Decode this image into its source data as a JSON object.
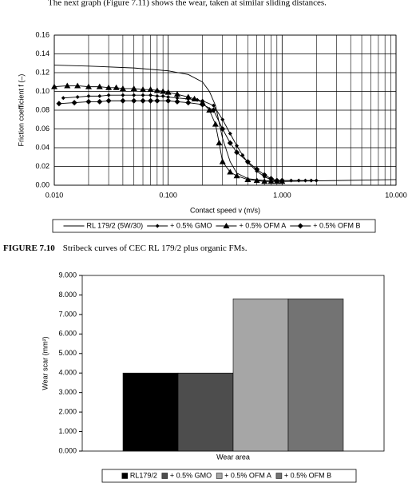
{
  "intro": "The next graph (Figure 7.11) shows the wear, taken at similar sliding distances.",
  "caption": {
    "label": "FIGURE 7.10",
    "text": "Stribeck curves of CEC RL 179/2 plus organic FMs."
  },
  "chart_data": [
    {
      "type": "line",
      "x_label": "Contact speed v (m/s)",
      "y_label": "Friction coefficient f (–)",
      "xscale": "log",
      "grid": true,
      "legend": "bottom",
      "xlim": [
        0.01,
        10
      ],
      "ylim": [
        0,
        0.16
      ],
      "xticks": [
        {
          "value": 0.01,
          "label": "0.010"
        },
        {
          "value": 0.1,
          "label": "0.100"
        },
        {
          "value": 1,
          "label": "1.000"
        },
        {
          "value": 10,
          "label": "10.000"
        }
      ],
      "xminor": [
        0.02,
        0.03,
        0.04,
        0.05,
        0.06,
        0.07,
        0.08,
        0.09,
        0.2,
        0.3,
        0.4,
        0.5,
        0.6,
        0.7,
        0.8,
        0.9,
        2,
        3,
        4,
        5,
        6,
        7,
        8,
        9
      ],
      "yticks": [
        {
          "value": 0,
          "label": "0.00"
        },
        {
          "value": 0.02,
          "label": "0.02"
        },
        {
          "value": 0.04,
          "label": "0.04"
        },
        {
          "value": 0.06,
          "label": "0.06"
        },
        {
          "value": 0.08,
          "label": "0.08"
        },
        {
          "value": 0.1,
          "label": "0.10"
        },
        {
          "value": 0.12,
          "label": "0.12"
        },
        {
          "value": 0.14,
          "label": "0.14"
        },
        {
          "value": 0.16,
          "label": "0.16"
        }
      ],
      "series": [
        {
          "name": "RL 179/2 (5W/30)",
          "color": "#000000",
          "marker": "none",
          "x": [
            0.01,
            0.02,
            0.05,
            0.1,
            0.15,
            0.2,
            0.23,
            0.26,
            0.3,
            0.35,
            0.4,
            0.5,
            0.7,
            1,
            3,
            10
          ],
          "values": [
            0.128,
            0.127,
            0.125,
            0.122,
            0.118,
            0.11,
            0.1,
            0.085,
            0.05,
            0.025,
            0.013,
            0.007,
            0.005,
            0.004,
            0.005,
            0.006
          ]
        },
        {
          "name": "+ 0.5% GMO",
          "color": "#000000",
          "marker": "small-diamond",
          "x": [
            0.012,
            0.016,
            0.02,
            0.025,
            0.03,
            0.04,
            0.05,
            0.06,
            0.07,
            0.08,
            0.09,
            0.1,
            0.12,
            0.15,
            0.18,
            0.2,
            0.25,
            0.3,
            0.35,
            0.4,
            0.45,
            0.5,
            0.6,
            0.7,
            0.8,
            0.9,
            1,
            1.2,
            1.4,
            1.6,
            1.8,
            2
          ],
          "values": [
            0.093,
            0.094,
            0.095,
            0.095,
            0.096,
            0.096,
            0.096,
            0.096,
            0.096,
            0.095,
            0.095,
            0.094,
            0.093,
            0.092,
            0.091,
            0.09,
            0.085,
            0.07,
            0.055,
            0.042,
            0.032,
            0.024,
            0.015,
            0.009,
            0.006,
            0.005,
            0.005,
            0.005,
            0.005,
            0.005,
            0.005,
            0.005
          ]
        },
        {
          "name": "+ 0.5% OFM A",
          "color": "#000000",
          "marker": "triangle",
          "x": [
            0.01,
            0.013,
            0.016,
            0.02,
            0.025,
            0.03,
            0.035,
            0.04,
            0.05,
            0.06,
            0.07,
            0.08,
            0.09,
            0.1,
            0.12,
            0.15,
            0.17,
            0.2,
            0.23,
            0.26,
            0.28,
            0.3,
            0.35,
            0.4,
            0.5,
            0.6,
            0.7,
            0.8,
            0.9,
            1
          ],
          "values": [
            0.105,
            0.106,
            0.106,
            0.105,
            0.105,
            0.104,
            0.104,
            0.103,
            0.103,
            0.102,
            0.102,
            0.101,
            0.1,
            0.099,
            0.097,
            0.094,
            0.092,
            0.088,
            0.08,
            0.065,
            0.045,
            0.025,
            0.014,
            0.01,
            0.006,
            0.005,
            0.004,
            0.004,
            0.004,
            0.004
          ]
        },
        {
          "name": "+ 0.5% OFM B",
          "color": "#000000",
          "marker": "diamond",
          "x": [
            0.011,
            0.015,
            0.02,
            0.025,
            0.03,
            0.04,
            0.05,
            0.06,
            0.07,
            0.08,
            0.1,
            0.12,
            0.15,
            0.2,
            0.25,
            0.3,
            0.35,
            0.4,
            0.5,
            0.6,
            0.7,
            0.8,
            0.9,
            1
          ],
          "values": [
            0.087,
            0.088,
            0.089,
            0.089,
            0.09,
            0.09,
            0.09,
            0.09,
            0.09,
            0.09,
            0.09,
            0.089,
            0.088,
            0.086,
            0.08,
            0.06,
            0.045,
            0.035,
            0.025,
            0.017,
            0.011,
            0.007,
            0.005,
            0.005
          ]
        }
      ]
    },
    {
      "type": "bar",
      "x_label": "Wear area",
      "y_label": "Wear scar (mm²)",
      "legend": "bottom",
      "categories": [
        "Wear area"
      ],
      "ylim": [
        0,
        9
      ],
      "yticks": [
        {
          "value": 0,
          "label": "0.000"
        },
        {
          "value": 1,
          "label": "1.000"
        },
        {
          "value": 2,
          "label": "2.000"
        },
        {
          "value": 3,
          "label": "3.000"
        },
        {
          "value": 4,
          "label": "4.000"
        },
        {
          "value": 5,
          "label": "5.000"
        },
        {
          "value": 6,
          "label": "6.000"
        },
        {
          "value": 7,
          "label": "7.000"
        },
        {
          "value": 8,
          "label": "8.000"
        },
        {
          "value": 9,
          "label": "9.000"
        }
      ],
      "series": [
        {
          "name": "RL179/2",
          "color": "#000000",
          "values": [
            4.0
          ]
        },
        {
          "name": "+ 0.5% GMO",
          "color": "#4d4d4d",
          "values": [
            4.0
          ]
        },
        {
          "name": "+ 0.5% OFM A",
          "color": "#a6a6a6",
          "values": [
            7.8
          ]
        },
        {
          "name": "+ 0.5% OFM B",
          "color": "#737373",
          "values": [
            7.8
          ]
        }
      ]
    }
  ]
}
